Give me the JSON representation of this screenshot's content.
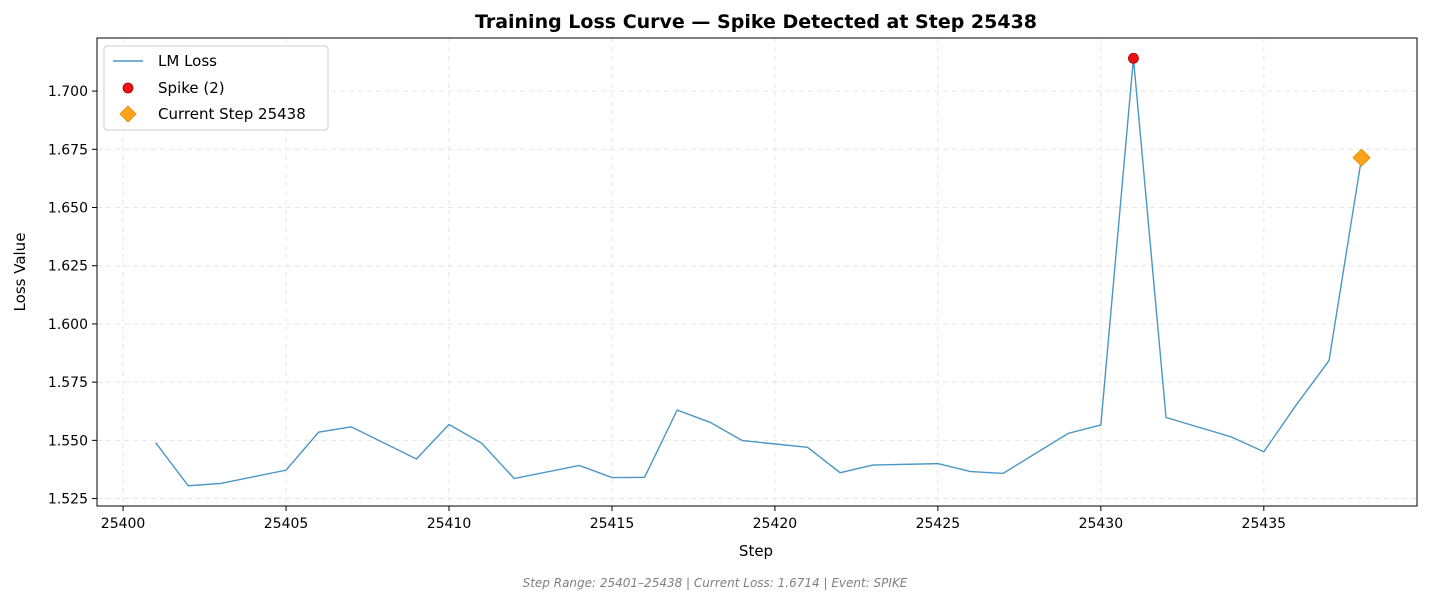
{
  "chart_data": {
    "type": "line",
    "title": "Training Loss Curve — Spike Detected at Step 25438",
    "xlabel": "Step",
    "ylabel": "Loss Value",
    "xlim": [
      25399.2,
      25439.7
    ],
    "ylim": [
      1.5218,
      1.7228
    ],
    "xticks": [
      25400,
      25405,
      25410,
      25415,
      25420,
      25425,
      25430,
      25435
    ],
    "yticks": [
      1.525,
      1.55,
      1.575,
      1.6,
      1.625,
      1.65,
      1.675,
      1.7
    ],
    "ytick_labels": [
      "1.525",
      "1.550",
      "1.575",
      "1.600",
      "1.625",
      "1.650",
      "1.675",
      "1.700"
    ],
    "grid": true,
    "legend_position": "top-left",
    "series": [
      {
        "name": "LM Loss",
        "kind": "line",
        "color": "#4a96c4",
        "points": [
          [
            25401,
            1.549
          ],
          [
            25402,
            1.5305
          ],
          [
            25403,
            1.5315
          ],
          [
            25405,
            1.5372
          ],
          [
            25406,
            1.5535
          ],
          [
            25407,
            1.5558
          ],
          [
            25409,
            1.542
          ],
          [
            25410,
            1.5568
          ],
          [
            25411,
            1.5488
          ],
          [
            25412,
            1.5336
          ],
          [
            25414,
            1.5392
          ],
          [
            25415,
            1.534
          ],
          [
            25416,
            1.5341
          ],
          [
            25417,
            1.563
          ],
          [
            25418,
            1.5578
          ],
          [
            25419,
            1.5499
          ],
          [
            25421,
            1.547
          ],
          [
            25422,
            1.5361
          ],
          [
            25423,
            1.5394
          ],
          [
            25425,
            1.54
          ],
          [
            25426,
            1.5366
          ],
          [
            25427,
            1.5358
          ],
          [
            25429,
            1.553
          ],
          [
            25430,
            1.5566
          ],
          [
            25431,
            1.7141
          ],
          [
            25432,
            1.5598
          ],
          [
            25434,
            1.5515
          ],
          [
            25435,
            1.5451
          ],
          [
            25436,
            1.5653
          ],
          [
            25437,
            1.5842
          ],
          [
            25438,
            1.6714
          ]
        ]
      },
      {
        "name": "Spike (2)",
        "kind": "scatter",
        "color": "#ee1111",
        "edge_color": "#aa0000",
        "marker": "circle",
        "points": [
          [
            25431,
            1.7141
          ]
        ]
      },
      {
        "name": "Current Step 25438",
        "kind": "scatter",
        "color": "#ffa31a",
        "edge_color": "#e08a00",
        "marker": "diamond",
        "points": [
          [
            25438,
            1.6714
          ]
        ]
      }
    ],
    "footer": "Step Range: 25401–25438 | Current Loss: 1.6714 | Event: SPIKE"
  }
}
